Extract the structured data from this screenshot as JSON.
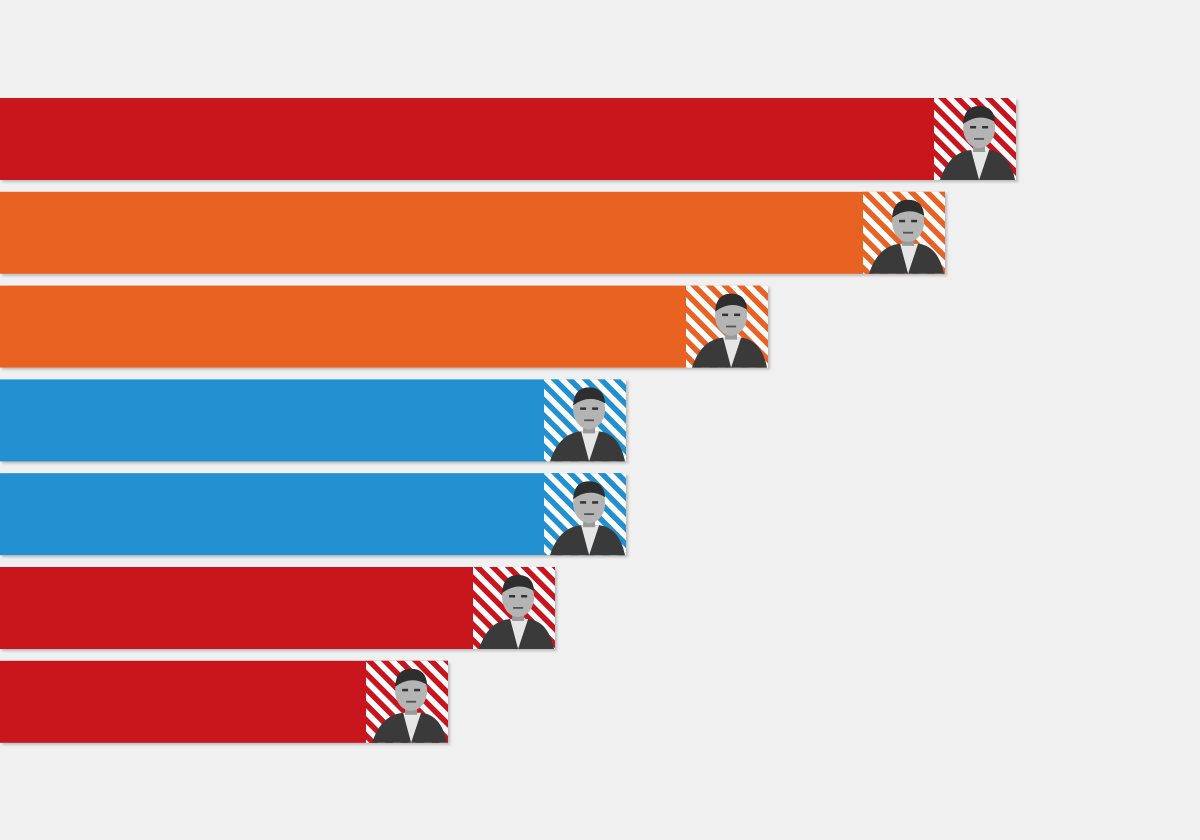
{
  "chart_data": {
    "type": "bar",
    "orientation": "horizontal",
    "title": "",
    "xlabel": "",
    "ylabel": "",
    "grid": false,
    "legend": "none",
    "xlim": [
      0,
      1200
    ],
    "categories": [
      "",
      "",
      "",
      "",
      "",
      "",
      ""
    ],
    "values": [
      1016,
      945,
      768,
      626,
      626,
      555,
      448
    ],
    "party_colors": {
      "red": "#c8141c",
      "orange": "#e86224",
      "blue": "#2190d1"
    },
    "bar_colors": [
      "#c8141c",
      "#e86224",
      "#e86224",
      "#2190d1",
      "#2190d1",
      "#c8141c",
      "#c8141c"
    ],
    "bar_icons": [
      "portrait-icon",
      "portrait-icon",
      "portrait-icon",
      "portrait-icon",
      "portrait-icon",
      "portrait-icon",
      "portrait-icon"
    ]
  }
}
